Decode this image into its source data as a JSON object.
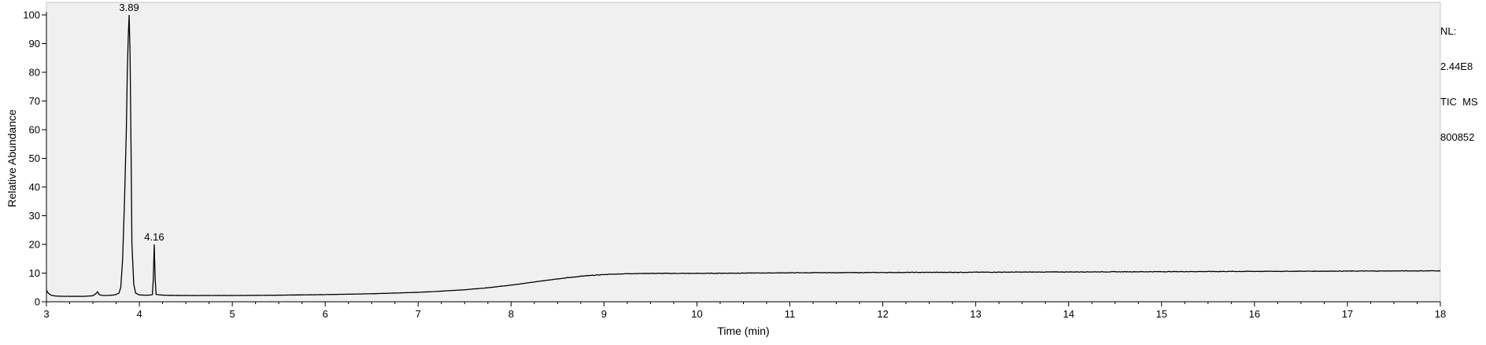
{
  "info_panel": {
    "nl_label": "NL:",
    "nl_value": "2.44E8",
    "trace_type": "TIC  MS",
    "sample_id": "800852"
  },
  "colors": {
    "plot_background": "#f0f0f0",
    "trace": "#000000",
    "axis": "#000000"
  },
  "chart_data": {
    "type": "line",
    "title": "",
    "xlabel": "Time (min)",
    "ylabel": "Relative Abundance",
    "xlim": [
      3,
      18
    ],
    "ylim": [
      0,
      100
    ],
    "x_ticks": [
      3,
      4,
      5,
      6,
      7,
      8,
      9,
      10,
      11,
      12,
      13,
      14,
      15,
      16,
      17,
      18
    ],
    "y_ticks": [
      0,
      10,
      20,
      30,
      40,
      50,
      60,
      70,
      80,
      90,
      100
    ],
    "grid": false,
    "legend": "none",
    "annotations": [
      {
        "label": "3.89",
        "x": 3.89,
        "y": 100
      },
      {
        "label": "4.16",
        "x": 4.16,
        "y": 20
      }
    ],
    "series": [
      {
        "x": [
          3.0,
          3.02,
          3.05,
          3.1,
          3.2,
          3.3,
          3.4,
          3.5,
          3.53,
          3.55,
          3.57,
          3.6,
          3.65,
          3.7,
          3.75,
          3.78,
          3.8,
          3.82,
          3.84,
          3.86,
          3.87,
          3.88,
          3.89,
          3.9,
          3.91,
          3.92,
          3.94,
          3.96,
          4.0,
          4.05,
          4.1,
          4.14,
          4.15,
          4.16,
          4.17,
          4.18,
          4.25,
          4.5,
          5.0,
          5.5,
          6.0,
          6.5,
          7.0,
          7.25,
          7.5,
          7.75,
          8.0,
          8.25,
          8.5,
          8.75,
          9.0,
          9.25,
          9.5,
          10.0,
          10.5,
          11.0,
          12.0,
          13.0,
          14.0,
          15.0,
          16.0,
          17.0,
          18.0
        ],
        "y": [
          4.0,
          3.0,
          2.3,
          2.0,
          1.9,
          1.9,
          1.9,
          2.1,
          2.8,
          3.5,
          2.5,
          2.2,
          2.2,
          2.3,
          2.5,
          3.0,
          5.0,
          15.0,
          35.0,
          60.0,
          80.0,
          92.0,
          100.0,
          86.0,
          55.0,
          20.0,
          6.0,
          3.0,
          2.4,
          2.3,
          2.3,
          2.5,
          8.0,
          20.0,
          8.0,
          2.6,
          2.3,
          2.2,
          2.2,
          2.3,
          2.5,
          2.8,
          3.3,
          3.7,
          4.2,
          4.9,
          5.8,
          6.9,
          8.0,
          8.9,
          9.5,
          9.8,
          9.9,
          9.9,
          10.0,
          10.1,
          10.2,
          10.3,
          10.4,
          10.5,
          10.6,
          10.7,
          10.8
        ]
      }
    ]
  }
}
